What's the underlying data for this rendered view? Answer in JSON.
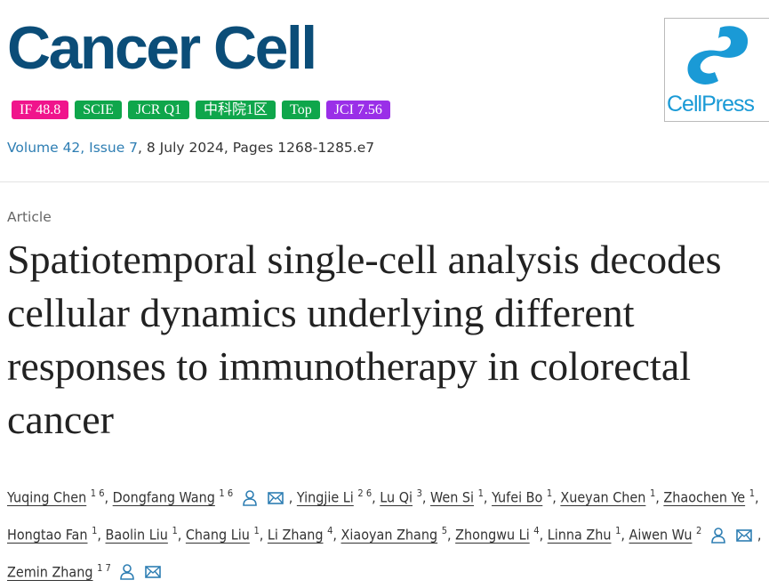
{
  "journal": {
    "name": "Cancer Cell",
    "publisher_logo": "CellPress",
    "brand_color": "#0b4d78"
  },
  "badges": [
    {
      "label": "IF 48.8",
      "color": "#f0148c"
    },
    {
      "label": "SCIE",
      "color": "#0fa64b"
    },
    {
      "label": "JCR Q1",
      "color": "#0fa64b"
    },
    {
      "label": "中科院1区",
      "color": "#0fa64b"
    },
    {
      "label": "Top",
      "color": "#0fa64b"
    },
    {
      "label": "JCI 7.56",
      "color": "#9a2fe8"
    }
  ],
  "citation": {
    "volume": "Volume 42, Issue 7",
    "rest": ", 8 July 2024, Pages 1268-1285.e7"
  },
  "article_type": "Article",
  "title": "Spatiotemporal single-cell analysis decodes cellular dynamics underlying different responses to immunotherapy in colorectal cancer",
  "authors": [
    {
      "name": "Yuqing Chen",
      "aff": "1 6"
    },
    {
      "name": "Dongfang Wang",
      "aff": "1 6",
      "icons": true
    },
    {
      "name": "Yingjie Li",
      "aff": "2 6"
    },
    {
      "name": "Lu Qi",
      "aff": "3"
    },
    {
      "name": "Wen Si",
      "aff": "1"
    },
    {
      "name": "Yufei Bo",
      "aff": "1"
    },
    {
      "name": "Xueyan Chen",
      "aff": "1"
    },
    {
      "name": "Zhaochen Ye",
      "aff": "1"
    },
    {
      "name": "Hongtao Fan",
      "aff": "1"
    },
    {
      "name": "Baolin Liu",
      "aff": "1"
    },
    {
      "name": "Chang Liu",
      "aff": "1"
    },
    {
      "name": "Li Zhang",
      "aff": "4"
    },
    {
      "name": "Xiaoyan Zhang",
      "aff": "5"
    },
    {
      "name": "Zhongwu Li",
      "aff": "4"
    },
    {
      "name": "Linna Zhu",
      "aff": "1"
    },
    {
      "name": "Aiwen Wu",
      "aff": "2",
      "icons": true
    },
    {
      "name": "Zemin Zhang",
      "aff": "1 7",
      "icons": true
    }
  ]
}
